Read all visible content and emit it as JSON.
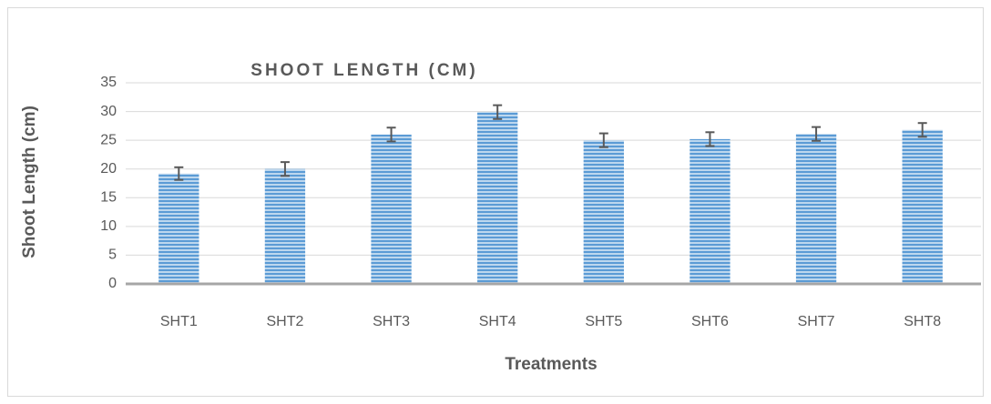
{
  "chart_data": {
    "type": "bar",
    "title": "SHOOT LENGTH (CM)",
    "x_label": "Treatments",
    "y_label": "Shoot Length (cm)",
    "categories": [
      "SHT1",
      "SHT2",
      "SHT3",
      "SHT4",
      "SHT5",
      "SHT6",
      "SHT7",
      "SHT8"
    ],
    "values": [
      19.2,
      20,
      26,
      29.9,
      25,
      25.2,
      26.1,
      26.8
    ],
    "errors": [
      1.1,
      1.2,
      1.2,
      1.2,
      1.2,
      1.2,
      1.2,
      1.2
    ],
    "color": "#5b9bd5",
    "ylim": [
      0,
      35
    ],
    "yticks": [
      0,
      5,
      10,
      15,
      20,
      25,
      30,
      35
    ],
    "grid": true
  }
}
